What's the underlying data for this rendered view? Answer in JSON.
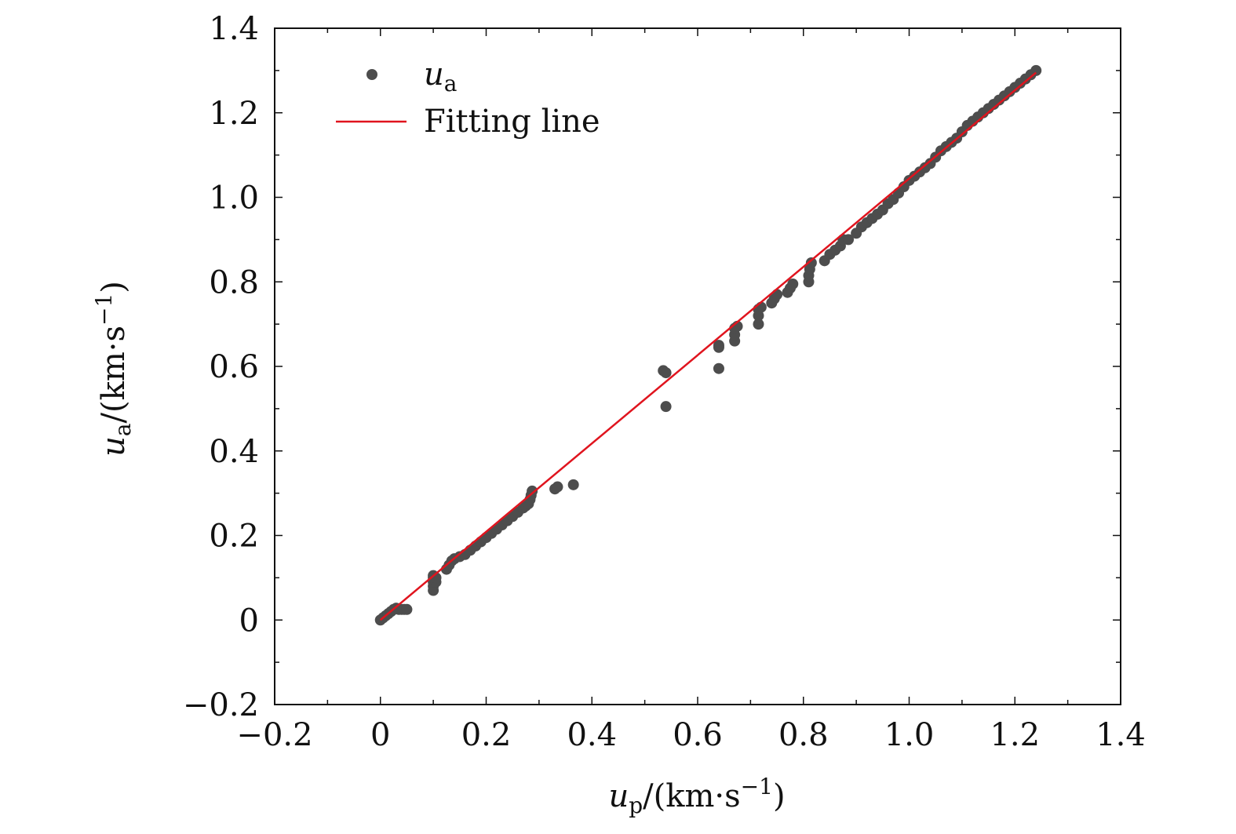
{
  "chart_data": {
    "type": "scatter",
    "title": "",
    "xlabel": {
      "base": "u",
      "sub": "p",
      "unit": "/(km·s",
      "sup": "−1",
      "close": ")"
    },
    "ylabel": {
      "base": "u",
      "sub": "a",
      "unit": "/(km·s",
      "sup": "−1",
      "close": ")"
    },
    "xlim": [
      -0.2,
      1.4
    ],
    "ylim": [
      -0.2,
      1.4
    ],
    "x_ticks": [
      -0.2,
      0,
      0.2,
      0.4,
      0.6,
      0.8,
      1.0,
      1.2,
      1.4
    ],
    "x_tick_labels": [
      "−0.2",
      "0",
      "0.2",
      "0.4",
      "0.6",
      "0.8",
      "1.0",
      "1.2",
      "1.4"
    ],
    "y_ticks": [
      -0.2,
      0,
      0.2,
      0.4,
      0.6,
      0.8,
      1.0,
      1.2,
      1.4
    ],
    "y_tick_labels": [
      "−0.2",
      "0",
      "0.2",
      "0.4",
      "0.6",
      "0.8",
      "1.0",
      "1.2",
      "1.4"
    ],
    "grid": false,
    "legend": {
      "position": "top-left",
      "entries": [
        {
          "label_base": "u",
          "label_sub": "a",
          "marker": "dot"
        },
        {
          "label": "Fitting line",
          "marker": "line"
        }
      ]
    },
    "series": [
      {
        "name": "ua",
        "kind": "points",
        "color": "#4d4d4d",
        "points": [
          [
            0.0,
            0.0
          ],
          [
            0.005,
            0.005
          ],
          [
            0.01,
            0.01
          ],
          [
            0.015,
            0.015
          ],
          [
            0.02,
            0.02
          ],
          [
            0.025,
            0.025
          ],
          [
            0.03,
            0.028
          ],
          [
            0.035,
            0.025
          ],
          [
            0.04,
            0.025
          ],
          [
            0.045,
            0.025
          ],
          [
            0.05,
            0.025
          ],
          [
            0.1,
            0.07
          ],
          [
            0.1,
            0.08
          ],
          [
            0.1,
            0.09
          ],
          [
            0.1,
            0.1
          ],
          [
            0.1,
            0.105
          ],
          [
            0.105,
            0.09
          ],
          [
            0.105,
            0.1
          ],
          [
            0.125,
            0.12
          ],
          [
            0.13,
            0.13
          ],
          [
            0.135,
            0.14
          ],
          [
            0.14,
            0.145
          ],
          [
            0.15,
            0.15
          ],
          [
            0.16,
            0.155
          ],
          [
            0.17,
            0.165
          ],
          [
            0.18,
            0.175
          ],
          [
            0.19,
            0.185
          ],
          [
            0.2,
            0.195
          ],
          [
            0.21,
            0.205
          ],
          [
            0.22,
            0.215
          ],
          [
            0.23,
            0.225
          ],
          [
            0.24,
            0.235
          ],
          [
            0.25,
            0.245
          ],
          [
            0.26,
            0.255
          ],
          [
            0.27,
            0.265
          ],
          [
            0.275,
            0.27
          ],
          [
            0.28,
            0.275
          ],
          [
            0.283,
            0.285
          ],
          [
            0.285,
            0.295
          ],
          [
            0.287,
            0.305
          ],
          [
            0.33,
            0.31
          ],
          [
            0.335,
            0.315
          ],
          [
            0.365,
            0.32
          ],
          [
            0.535,
            0.59
          ],
          [
            0.54,
            0.585
          ],
          [
            0.54,
            0.505
          ],
          [
            0.64,
            0.65
          ],
          [
            0.64,
            0.645
          ],
          [
            0.64,
            0.595
          ],
          [
            0.67,
            0.66
          ],
          [
            0.67,
            0.675
          ],
          [
            0.67,
            0.69
          ],
          [
            0.675,
            0.695
          ],
          [
            0.715,
            0.7
          ],
          [
            0.715,
            0.72
          ],
          [
            0.715,
            0.735
          ],
          [
            0.72,
            0.74
          ],
          [
            0.74,
            0.75
          ],
          [
            0.745,
            0.76
          ],
          [
            0.75,
            0.77
          ],
          [
            0.77,
            0.775
          ],
          [
            0.775,
            0.785
          ],
          [
            0.78,
            0.795
          ],
          [
            0.81,
            0.8
          ],
          [
            0.81,
            0.815
          ],
          [
            0.812,
            0.83
          ],
          [
            0.815,
            0.845
          ],
          [
            0.84,
            0.85
          ],
          [
            0.85,
            0.865
          ],
          [
            0.86,
            0.875
          ],
          [
            0.87,
            0.885
          ],
          [
            0.875,
            0.9
          ],
          [
            0.885,
            0.9
          ],
          [
            0.9,
            0.915
          ],
          [
            0.91,
            0.93
          ],
          [
            0.92,
            0.94
          ],
          [
            0.93,
            0.95
          ],
          [
            0.94,
            0.96
          ],
          [
            0.95,
            0.97
          ],
          [
            0.96,
            0.985
          ],
          [
            0.97,
            0.995
          ],
          [
            0.98,
            1.01
          ],
          [
            0.99,
            1.025
          ],
          [
            1.0,
            1.04
          ],
          [
            1.01,
            1.05
          ],
          [
            1.02,
            1.06
          ],
          [
            1.03,
            1.07
          ],
          [
            1.04,
            1.08
          ],
          [
            1.05,
            1.095
          ],
          [
            1.06,
            1.11
          ],
          [
            1.07,
            1.12
          ],
          [
            1.08,
            1.13
          ],
          [
            1.09,
            1.14
          ],
          [
            1.1,
            1.155
          ],
          [
            1.11,
            1.17
          ],
          [
            1.12,
            1.18
          ],
          [
            1.13,
            1.19
          ],
          [
            1.14,
            1.2
          ],
          [
            1.15,
            1.21
          ],
          [
            1.16,
            1.22
          ],
          [
            1.17,
            1.23
          ],
          [
            1.18,
            1.24
          ],
          [
            1.19,
            1.25
          ],
          [
            1.2,
            1.26
          ],
          [
            1.21,
            1.27
          ],
          [
            1.22,
            1.28
          ],
          [
            1.23,
            1.29
          ],
          [
            1.24,
            1.3
          ]
        ]
      },
      {
        "name": "Fitting line",
        "kind": "line",
        "color": "#e0141e",
        "points": [
          [
            0.0,
            0.0
          ],
          [
            1.24,
            1.295
          ]
        ]
      }
    ]
  }
}
